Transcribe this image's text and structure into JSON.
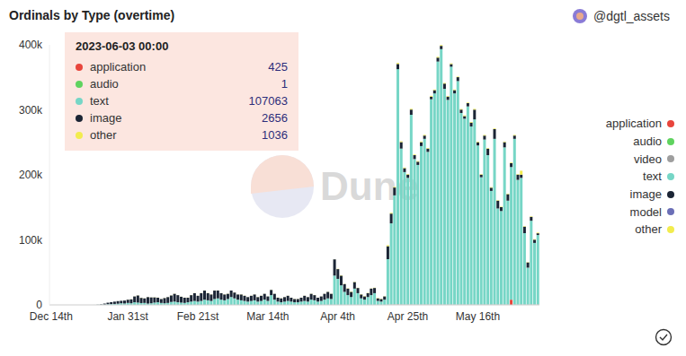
{
  "chart_data": {
    "type": "bar",
    "title": "Ordinals by Type (overtime)",
    "subtitle": "@dgtl_assets",
    "annotations": [
      {
        "text": "Dune"
      }
    ],
    "tooltip": {
      "title": "2023-06-03 00:00",
      "rows": [
        {
          "name": "application",
          "value": 425
        },
        {
          "name": "audio",
          "value": 1
        },
        {
          "name": "text",
          "value": 107063
        },
        {
          "name": "image",
          "value": 2656
        },
        {
          "name": "other",
          "value": 1036
        }
      ]
    },
    "stacked": true,
    "grid": false,
    "legend": "right",
    "ylim": [
      0,
      400000
    ],
    "yticks": [
      {
        "value": 0,
        "label": "0"
      },
      {
        "value": 100000,
        "label": "100k"
      },
      {
        "value": 200000,
        "label": "200k"
      },
      {
        "value": 300000,
        "label": "300k"
      },
      {
        "value": 400000,
        "label": "400k"
      }
    ],
    "categories": [
      "Dec 14th",
      null,
      null,
      null,
      null,
      null,
      null,
      null,
      null,
      null,
      null,
      null,
      null,
      null,
      null,
      null,
      null,
      null,
      null,
      null,
      null,
      null,
      null,
      "Jan 31st",
      null,
      null,
      null,
      null,
      null,
      null,
      null,
      null,
      null,
      null,
      null,
      null,
      null,
      null,
      null,
      null,
      null,
      null,
      null,
      null,
      "Feb 21st",
      null,
      null,
      null,
      null,
      null,
      null,
      null,
      null,
      null,
      null,
      null,
      null,
      null,
      null,
      null,
      null,
      null,
      null,
      null,
      null,
      "Mar 14th",
      null,
      null,
      null,
      null,
      null,
      null,
      null,
      null,
      null,
      null,
      null,
      null,
      null,
      null,
      null,
      null,
      null,
      null,
      null,
      null,
      "Apr 4th",
      null,
      null,
      null,
      null,
      null,
      null,
      null,
      null,
      null,
      null,
      null,
      null,
      null,
      null,
      null,
      null,
      null,
      null,
      null,
      null,
      "Apr 25th",
      null,
      null,
      null,
      null,
      null,
      null,
      null,
      null,
      null,
      null,
      null,
      null,
      null,
      null,
      null,
      null,
      null,
      null,
      null,
      null,
      "May 16th",
      null,
      null,
      null,
      null,
      null,
      null,
      null,
      null,
      null,
      null,
      null,
      null,
      null,
      null,
      null,
      null,
      null,
      null
    ],
    "series": [
      {
        "name": "application",
        "color": "#e8453c",
        "values": [
          0,
          0,
          0,
          0,
          0,
          0,
          0,
          0,
          0,
          0,
          0,
          0,
          0,
          0,
          0,
          0,
          0,
          0,
          0,
          0,
          0,
          0,
          0,
          10,
          20,
          10,
          30,
          20,
          10,
          20,
          10,
          20,
          30,
          10,
          20,
          10,
          20,
          30,
          20,
          10,
          20,
          10,
          20,
          30,
          20,
          30,
          20,
          40,
          30,
          20,
          30,
          20,
          30,
          40,
          20,
          30,
          20,
          30,
          40,
          30,
          20,
          30,
          20,
          30,
          40,
          20,
          30,
          20,
          40,
          30,
          20,
          30,
          20,
          30,
          40,
          20,
          30,
          20,
          30,
          40,
          30,
          20,
          30,
          20,
          30,
          40,
          50,
          60,
          40,
          50,
          60,
          50,
          40,
          50,
          60,
          50,
          40,
          50,
          60,
          50,
          40,
          300,
          400,
          500,
          600,
          400,
          300,
          350,
          400,
          300,
          250,
          300,
          400,
          350,
          300,
          280,
          320,
          400,
          350,
          300,
          380,
          300,
          260,
          300,
          350,
          300,
          400,
          300,
          250,
          300,
          350,
          300,
          280,
          400,
          300,
          350,
          300,
          300,
          8000,
          400,
          300,
          350,
          300,
          250,
          400,
          300,
          425
        ]
      },
      {
        "name": "audio",
        "color": "#5fd35f",
        "values": [
          0,
          0,
          0,
          0,
          0,
          0,
          0,
          0,
          0,
          0,
          0,
          0,
          0,
          0,
          0,
          0,
          0,
          0,
          0,
          0,
          0,
          0,
          0,
          0,
          0,
          0,
          0,
          0,
          0,
          0,
          0,
          0,
          0,
          0,
          0,
          0,
          0,
          0,
          0,
          0,
          0,
          0,
          0,
          0,
          0,
          0,
          0,
          0,
          0,
          0,
          0,
          0,
          0,
          0,
          0,
          0,
          0,
          0,
          0,
          0,
          0,
          0,
          0,
          0,
          0,
          0,
          0,
          0,
          0,
          0,
          0,
          0,
          0,
          0,
          0,
          0,
          0,
          0,
          0,
          0,
          0,
          0,
          0,
          0,
          0,
          0,
          0,
          0,
          0,
          0,
          0,
          0,
          0,
          0,
          0,
          0,
          0,
          0,
          0,
          0,
          0,
          0,
          0,
          0,
          0,
          0,
          0,
          0,
          0,
          0,
          0,
          0,
          0,
          0,
          0,
          0,
          0,
          0,
          0,
          0,
          0,
          0,
          0,
          0,
          0,
          0,
          0,
          0,
          0,
          0,
          0,
          0,
          0,
          0,
          0,
          0,
          0,
          0,
          0,
          0,
          0,
          0,
          0,
          0,
          0,
          0,
          1
        ]
      },
      {
        "name": "video",
        "color": "#9e9e9e",
        "values": [
          0,
          0,
          0,
          0,
          0,
          0,
          0,
          0,
          0,
          0,
          0,
          0,
          0,
          0,
          0,
          0,
          0,
          0,
          0,
          0,
          0,
          0,
          0,
          0,
          0,
          0,
          0,
          0,
          0,
          0,
          0,
          0,
          0,
          0,
          0,
          0,
          0,
          0,
          0,
          0,
          0,
          0,
          0,
          0,
          0,
          0,
          0,
          0,
          0,
          0,
          0,
          0,
          0,
          0,
          0,
          0,
          0,
          0,
          0,
          0,
          0,
          0,
          0,
          0,
          0,
          0,
          0,
          0,
          0,
          0,
          0,
          0,
          0,
          0,
          0,
          0,
          0,
          0,
          0,
          0,
          0,
          0,
          0,
          0,
          0,
          0,
          0,
          0,
          0,
          0,
          0,
          0,
          0,
          0,
          0,
          0,
          0,
          0,
          0,
          0,
          0,
          0,
          0,
          0,
          0,
          0,
          0,
          0,
          0,
          0,
          0,
          0,
          0,
          0,
          0,
          0,
          0,
          0,
          0,
          0,
          0,
          0,
          0,
          0,
          0,
          0,
          0,
          0,
          0,
          0,
          0,
          0,
          0,
          0,
          0,
          0,
          0,
          0,
          0,
          0,
          0,
          0,
          0,
          0,
          0,
          0,
          0
        ]
      },
      {
        "name": "text",
        "color": "#76d6c6",
        "values": [
          1,
          0,
          0,
          2,
          0,
          0,
          1,
          0,
          3,
          5,
          8,
          12,
          30,
          60,
          150,
          300,
          500,
          900,
          1200,
          1500,
          1800,
          2500,
          2200,
          3000,
          2500,
          4000,
          3500,
          2800,
          3000,
          2000,
          2500,
          3500,
          4000,
          3000,
          2500,
          3000,
          4500,
          5000,
          4000,
          3500,
          3000,
          4000,
          5000,
          6000,
          5000,
          6000,
          8000,
          7000,
          6000,
          9000,
          10000,
          8000,
          7000,
          9000,
          12000,
          10000,
          8000,
          7000,
          6000,
          5000,
          6000,
          7000,
          5000,
          6000,
          8000,
          6000,
          15000,
          8000,
          5000,
          4000,
          5000,
          6000,
          5000,
          4000,
          4000,
          5000,
          6000,
          5000,
          8000,
          7000,
          5000,
          6000,
          8000,
          10000,
          9000,
          45000,
          40000,
          30000,
          20000,
          15000,
          12000,
          25000,
          18000,
          10000,
          8000,
          12000,
          15000,
          18000,
          6000,
          5000,
          8000,
          70000,
          125000,
          168000,
          362000,
          240000,
          204000,
          195000,
          292000,
          224000,
          215000,
          244000,
          255000,
          235000,
          316000,
          325000,
          374000,
          393000,
          332000,
          315000,
          366000,
          325000,
          344000,
          295000,
          286000,
          305000,
          274000,
          285000,
          245000,
          196000,
          254000,
          230000,
          175000,
          255000,
          148000,
          144000,
          242000,
          160000,
          204000,
          255000,
          192000,
          195000,
          110000,
          57000,
          129000,
          95000,
          107063
        ]
      },
      {
        "name": "image",
        "color": "#1b2535",
        "values": [
          0,
          0,
          0,
          0,
          0,
          0,
          0,
          0,
          0,
          0,
          2,
          5,
          10,
          40,
          200,
          600,
          1500,
          2500,
          3000,
          3500,
          4000,
          3800,
          4500,
          5000,
          6000,
          9000,
          11000,
          8000,
          7000,
          10000,
          9000,
          8000,
          7000,
          6000,
          8000,
          9000,
          10000,
          12000,
          11000,
          9000,
          8000,
          7000,
          10000,
          12000,
          9000,
          12000,
          14000,
          11000,
          10000,
          13000,
          12000,
          10000,
          9000,
          8000,
          10000,
          9000,
          8000,
          9000,
          8000,
          7000,
          8000,
          9000,
          7000,
          8000,
          9000,
          7000,
          8000,
          9000,
          6000,
          6000,
          7000,
          8000,
          6000,
          5000,
          5000,
          6000,
          8000,
          7000,
          9000,
          8000,
          6000,
          7000,
          9000,
          10000,
          8000,
          25000,
          15000,
          15000,
          12000,
          10000,
          8000,
          10000,
          8000,
          6000,
          5000,
          6000,
          10000,
          8000,
          4000,
          4000,
          5000,
          20000,
          15000,
          12000,
          8000,
          10000,
          6000,
          5000,
          8000,
          6000,
          5000,
          6000,
          5000,
          5000,
          4000,
          5000,
          6000,
          5000,
          8000,
          5000,
          4000,
          5000,
          6000,
          5000,
          4000,
          5000,
          6000,
          15000,
          5000,
          4000,
          6000,
          10000,
          5000,
          15000,
          12000,
          6000,
          8000,
          10000,
          6000,
          5000,
          8000,
          5000,
          10000,
          8000,
          6000,
          5000,
          2656
        ]
      },
      {
        "name": "model",
        "color": "#6b6fb7",
        "values": [
          0,
          0,
          0,
          0,
          0,
          0,
          0,
          0,
          0,
          0,
          0,
          0,
          0,
          0,
          0,
          0,
          0,
          0,
          0,
          0,
          0,
          0,
          0,
          0,
          0,
          0,
          0,
          0,
          0,
          0,
          0,
          0,
          0,
          0,
          0,
          0,
          0,
          0,
          0,
          0,
          0,
          0,
          0,
          0,
          0,
          0,
          0,
          0,
          0,
          0,
          0,
          0,
          0,
          0,
          0,
          0,
          0,
          0,
          0,
          0,
          0,
          0,
          0,
          0,
          0,
          0,
          0,
          0,
          0,
          0,
          0,
          0,
          0,
          0,
          0,
          0,
          0,
          0,
          0,
          0,
          0,
          0,
          0,
          0,
          0,
          0,
          0,
          0,
          0,
          0,
          0,
          0,
          0,
          0,
          0,
          0,
          0,
          0,
          0,
          0,
          0,
          0,
          0,
          0,
          0,
          0,
          0,
          0,
          0,
          0,
          0,
          0,
          0,
          0,
          0,
          0,
          0,
          0,
          0,
          0,
          0,
          0,
          0,
          0,
          0,
          0,
          0,
          0,
          0,
          0,
          0,
          0,
          0,
          0,
          0,
          0,
          0,
          0,
          0,
          0,
          0,
          0,
          0,
          0,
          0,
          0,
          0
        ]
      },
      {
        "name": "other",
        "color": "#f2ec4e",
        "values": [
          0,
          0,
          0,
          0,
          0,
          0,
          0,
          0,
          0,
          0,
          0,
          0,
          0,
          0,
          0,
          5,
          10,
          20,
          30,
          40,
          50,
          60,
          50,
          100,
          150,
          120,
          200,
          180,
          100,
          150,
          120,
          200,
          180,
          100,
          150,
          120,
          200,
          180,
          100,
          150,
          120,
          200,
          180,
          100,
          100,
          150,
          120,
          200,
          180,
          100,
          150,
          120,
          200,
          180,
          100,
          150,
          120,
          200,
          180,
          100,
          150,
          120,
          200,
          180,
          100,
          100,
          150,
          120,
          200,
          180,
          100,
          150,
          120,
          200,
          180,
          100,
          150,
          120,
          200,
          180,
          100,
          150,
          120,
          200,
          180,
          100,
          400,
          500,
          300,
          400,
          500,
          400,
          300,
          400,
          500,
          400,
          300,
          400,
          500,
          400,
          300,
          1500,
          1200,
          1000,
          1500,
          1200,
          1000,
          900,
          1200,
          1000,
          900,
          1000,
          1100,
          900,
          1200,
          1000,
          1300,
          1200,
          1000,
          900,
          1100,
          1000,
          900,
          1000,
          1100,
          900,
          1000,
          1200,
          900,
          800,
          1000,
          900,
          800,
          1000,
          800,
          700,
          900,
          800,
          900,
          1000,
          800,
          6000,
          700,
          500,
          800,
          700,
          1036
        ]
      }
    ]
  }
}
